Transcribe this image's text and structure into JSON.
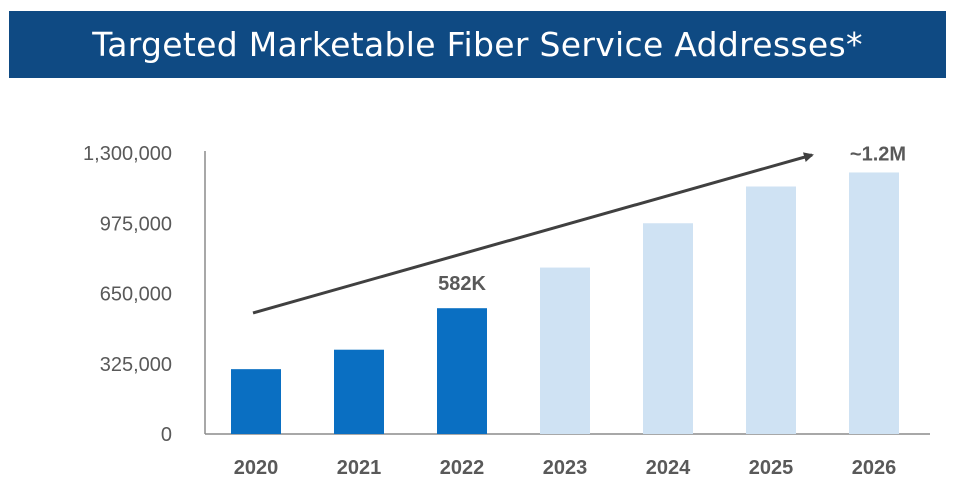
{
  "title": "Targeted Marketable Fiber Service Addresses*",
  "colors": {
    "title_bg": "#0f4a83",
    "actual": "#0a6fc2",
    "projected": "#cfe2f3",
    "axis": "#8c8c8c",
    "text": "#595959",
    "arrow": "#404040"
  },
  "chart_data": {
    "type": "bar",
    "title": "Targeted Marketable Fiber Service Addresses*",
    "categories": [
      "2020",
      "2021",
      "2022",
      "2023",
      "2024",
      "2025",
      "2026"
    ],
    "series": [
      {
        "values": [
          300000,
          390000,
          582000,
          770000,
          975000,
          1145000,
          1210000
        ]
      }
    ],
    "projected": [
      false,
      false,
      false,
      true,
      true,
      true,
      true
    ],
    "data_labels": [
      {
        "category": "2022",
        "text": "582K"
      },
      {
        "category": "2026",
        "text": "~1.2M"
      }
    ],
    "y_ticks": [
      0,
      325000,
      650000,
      975000,
      1300000
    ],
    "y_tick_labels": [
      "0",
      "325,000",
      "650,000",
      "975,000",
      "1,300,000"
    ],
    "ylim": [
      0,
      1300000
    ],
    "xlabel": "",
    "ylabel": "",
    "grid": false,
    "trend_arrow": {
      "from_category": "2020",
      "to_category": "2026",
      "from_value": 560000,
      "to_value": 1300000
    }
  }
}
